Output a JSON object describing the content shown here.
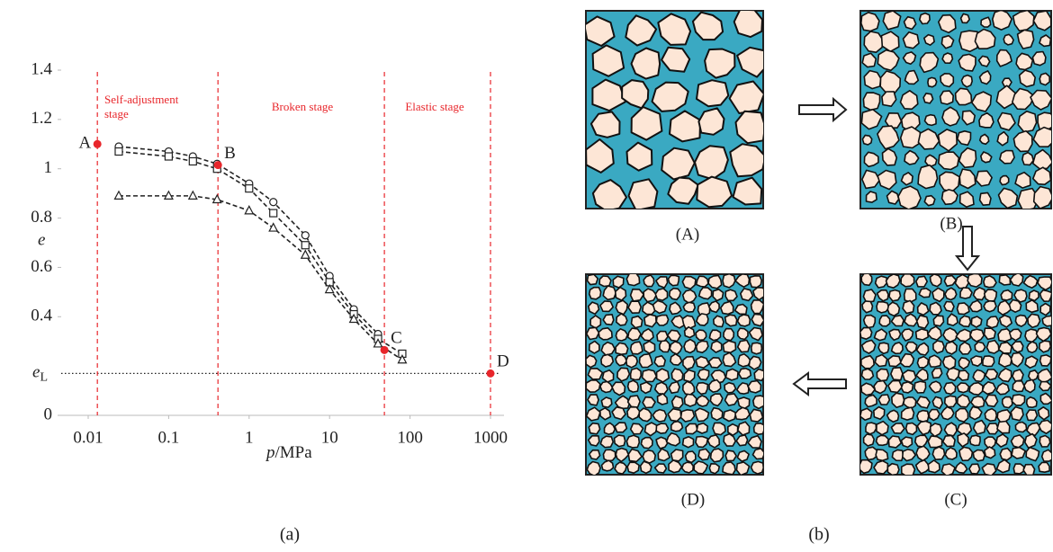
{
  "chart_data": {
    "type": "line",
    "x_label": {
      "italic": "p",
      "rest": "/MPa"
    },
    "y_label": "e",
    "caption": "(a)",
    "xscale": "log",
    "xlim": [
      0.01,
      1000
    ],
    "xticks": [
      0.01,
      0.1,
      1,
      10,
      100,
      1000
    ],
    "ylim": [
      0,
      1.4
    ],
    "yticks": [
      0,
      0.4,
      0.6,
      0.8,
      1,
      1.2,
      1.4
    ],
    "reference_line": {
      "value": 0.17,
      "label": "e",
      "sub": "L"
    },
    "stage_lines": [
      0.013,
      0.41,
      48,
      1000
    ],
    "stage_color": "#e8262b",
    "stages": [
      {
        "lines": [
          "Self-adjustment",
          "stage"
        ]
      },
      {
        "lines": [
          "Broken stage"
        ]
      },
      {
        "lines": [
          "Elastic stage"
        ]
      }
    ],
    "key_points": {
      "labels": [
        "A",
        "B",
        "C",
        "D"
      ],
      "x": [
        0.013,
        0.41,
        48,
        1000
      ],
      "values": [
        1.1,
        1.015,
        0.265,
        0.17
      ],
      "color": "#e8262b"
    },
    "series": [
      {
        "marker": "circle",
        "color": "#222222",
        "x": [
          0.024,
          0.1,
          0.2,
          0.4,
          1,
          2,
          5,
          10,
          20,
          40
        ],
        "values": [
          1.09,
          1.07,
          1.05,
          1.02,
          0.94,
          0.865,
          0.73,
          0.565,
          0.43,
          0.33
        ]
      },
      {
        "marker": "square",
        "color": "#222222",
        "x": [
          0.024,
          0.1,
          0.2,
          0.4,
          1,
          2,
          5,
          10,
          20,
          40,
          80
        ],
        "values": [
          1.07,
          1.05,
          1.03,
          1.0,
          0.92,
          0.82,
          0.69,
          0.54,
          0.41,
          0.31,
          0.25
        ]
      },
      {
        "marker": "triangle",
        "color": "#222222",
        "x": [
          0.024,
          0.1,
          0.2,
          0.4,
          1,
          2,
          5,
          10,
          20,
          40,
          80
        ],
        "values": [
          0.89,
          0.89,
          0.89,
          0.875,
          0.83,
          0.76,
          0.65,
          0.51,
          0.39,
          0.29,
          0.225
        ]
      }
    ]
  },
  "diagram": {
    "caption": "(b)",
    "panels": [
      {
        "label": "(A)"
      },
      {
        "label": "(B)"
      },
      {
        "label": "(C)"
      },
      {
        "label": "(D)"
      }
    ]
  }
}
